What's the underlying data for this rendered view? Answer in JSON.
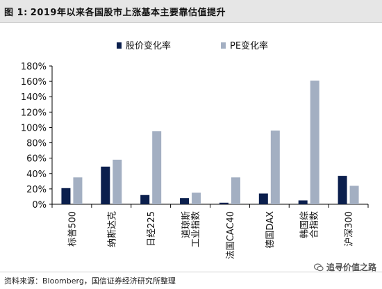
{
  "figure": {
    "label": "图 1:",
    "title": "2019年以来各国股市上涨基本主要靠估值提升"
  },
  "source": "资料来源：Bloomberg，国信证券经济研究所整理",
  "watermark": "追寻价值之路",
  "colors": {
    "series1": "#0b1f4d",
    "series2": "#a3afc2",
    "axis": "#000000"
  },
  "chart_data": {
    "type": "bar",
    "categories": [
      "标普500",
      "纳斯达克",
      "日经225",
      "道琼斯\n工业指数",
      "法国CAC40",
      "德国DAX",
      "韩国综\n合指数",
      "沪深300"
    ],
    "series": [
      {
        "name": "股价变化率",
        "values": [
          21,
          49,
          12,
          8,
          2,
          14,
          5,
          37
        ]
      },
      {
        "name": "PE变化率",
        "values": [
          35,
          58,
          95,
          15,
          35,
          96,
          161,
          24
        ]
      }
    ],
    "ylim": [
      0,
      180
    ],
    "yticks": [
      0,
      20,
      40,
      60,
      80,
      100,
      120,
      140,
      160,
      180
    ],
    "yformat": "percent",
    "legend": "top-center",
    "grid": false
  }
}
